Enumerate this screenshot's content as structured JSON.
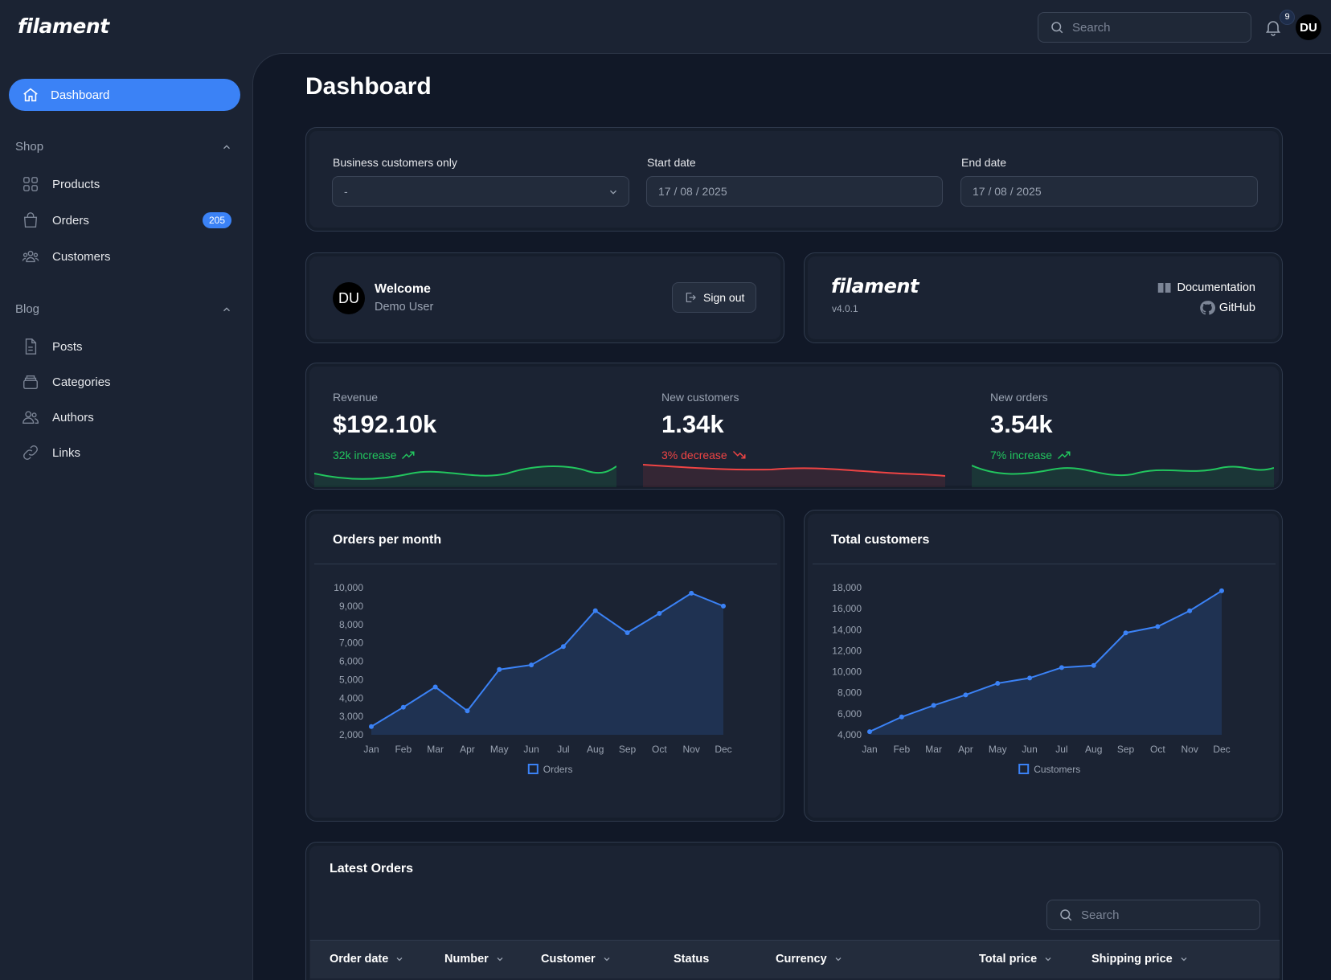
{
  "app": {
    "logo": "filament"
  },
  "topbar": {
    "search_placeholder": "Search",
    "notifications_count": "9",
    "avatar_initials": "DU"
  },
  "sidebar": {
    "dashboard": "Dashboard",
    "groups": [
      {
        "label": "Shop",
        "items": [
          {
            "label": "Products",
            "icon": "products-icon"
          },
          {
            "label": "Orders",
            "icon": "orders-icon",
            "badge": "205"
          },
          {
            "label": "Customers",
            "icon": "customers-icon"
          }
        ]
      },
      {
        "label": "Blog",
        "items": [
          {
            "label": "Posts",
            "icon": "posts-icon"
          },
          {
            "label": "Categories",
            "icon": "categories-icon"
          },
          {
            "label": "Authors",
            "icon": "authors-icon"
          },
          {
            "label": "Links",
            "icon": "links-icon"
          }
        ]
      }
    ]
  },
  "page": {
    "title": "Dashboard"
  },
  "filters": {
    "business": {
      "label": "Business customers only",
      "value": "-"
    },
    "start": {
      "label": "Start date",
      "value": "17 / 08 / 2025"
    },
    "end": {
      "label": "End date",
      "value": "17 / 08 / 2025"
    }
  },
  "welcome": {
    "avatar": "DU",
    "heading": "Welcome",
    "name": "Demo User",
    "signout": "Sign out"
  },
  "info": {
    "logo": "filament",
    "version": "v4.0.1",
    "docs": "Documentation",
    "github": "GitHub"
  },
  "stats": [
    {
      "label": "Revenue",
      "value": "$192.10k",
      "desc": "32k increase",
      "trend": "up",
      "color": "#22c55e"
    },
    {
      "label": "New customers",
      "value": "1.34k",
      "desc": "3% decrease",
      "trend": "down",
      "color": "#ef4444"
    },
    {
      "label": "New orders",
      "value": "3.54k",
      "desc": "7% increase",
      "trend": "up",
      "color": "#22c55e"
    }
  ],
  "chart_data": [
    {
      "type": "line",
      "title": "Orders per month",
      "categories": [
        "Jan",
        "Feb",
        "Mar",
        "Apr",
        "May",
        "Jun",
        "Jul",
        "Aug",
        "Sep",
        "Oct",
        "Nov",
        "Dec"
      ],
      "series": [
        {
          "name": "Orders",
          "values": [
            2450,
            3500,
            4600,
            3300,
            5550,
            5800,
            6800,
            8750,
            7550,
            8600,
            9700,
            9000
          ]
        }
      ],
      "ylim": [
        2000,
        10000
      ],
      "yticks": [
        2000,
        3000,
        4000,
        5000,
        6000,
        7000,
        8000,
        9000,
        10000
      ],
      "ytick_labels": [
        "2,000",
        "3,000",
        "4,000",
        "5,000",
        "6,000",
        "7,000",
        "8,000",
        "9,000",
        "10,000"
      ],
      "color": "#3b82f6"
    },
    {
      "type": "line",
      "title": "Total customers",
      "categories": [
        "Jan",
        "Feb",
        "Mar",
        "Apr",
        "May",
        "Jun",
        "Jul",
        "Aug",
        "Sep",
        "Oct",
        "Nov",
        "Dec"
      ],
      "series": [
        {
          "name": "Customers",
          "values": [
            4300,
            5700,
            6800,
            7800,
            8900,
            9400,
            10400,
            10600,
            13700,
            14300,
            15800,
            17700
          ]
        }
      ],
      "ylim": [
        4000,
        18000
      ],
      "yticks": [
        4000,
        6000,
        8000,
        10000,
        12000,
        14000,
        16000,
        18000
      ],
      "ytick_labels": [
        "4,000",
        "6,000",
        "8,000",
        "10,000",
        "12,000",
        "14,000",
        "16,000",
        "18,000"
      ],
      "color": "#3b82f6"
    }
  ],
  "latest_orders": {
    "title": "Latest Orders",
    "search_placeholder": "Search",
    "columns": [
      {
        "label": "Order date",
        "sortable": true
      },
      {
        "label": "Number",
        "sortable": true
      },
      {
        "label": "Customer",
        "sortable": true
      },
      {
        "label": "Status",
        "sortable": false
      },
      {
        "label": "Currency",
        "sortable": true
      },
      {
        "label": "Total price",
        "sortable": true
      },
      {
        "label": "Shipping price",
        "sortable": true
      }
    ]
  }
}
